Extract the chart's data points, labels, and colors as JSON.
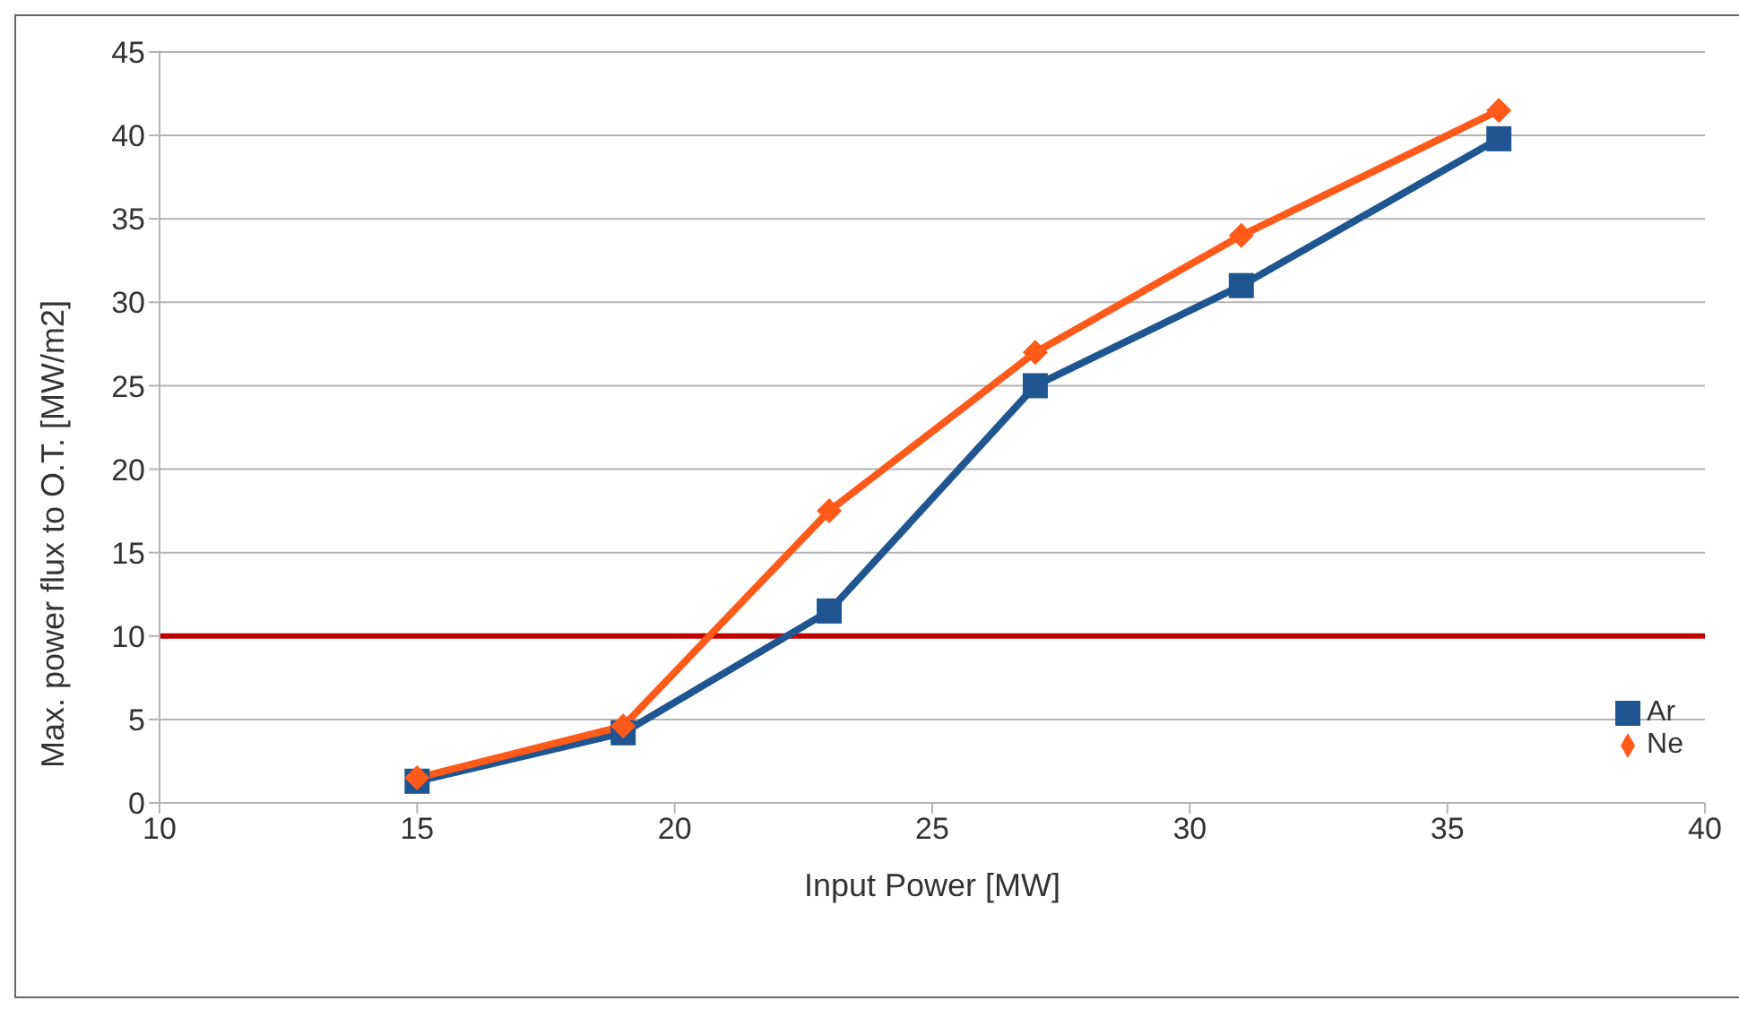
{
  "chart_data": {
    "type": "line",
    "xlabel": "Input Power [MW]",
    "ylabel": "Max. power flux to O.T. [MW/m2]",
    "x": [
      15,
      19,
      23,
      27,
      31,
      36
    ],
    "series": [
      {
        "name": "Ar",
        "color": "#1f5591",
        "marker": "square",
        "values": [
          1.3,
          4.2,
          11.5,
          25,
          31,
          39.8
        ]
      },
      {
        "name": "Ne",
        "color": "#ff5a1a",
        "marker": "diamond",
        "values": [
          1.5,
          4.6,
          17.5,
          27,
          34,
          41.5
        ]
      }
    ],
    "xlim": [
      10,
      40
    ],
    "xticks": [
      10,
      15,
      20,
      25,
      30,
      35,
      40
    ],
    "ylim": [
      0,
      45
    ],
    "yticks": [
      0,
      5,
      10,
      15,
      20,
      25,
      30,
      35,
      40,
      45
    ],
    "grid": "y",
    "legend": "right",
    "line_style": "solid",
    "ref_lines": [
      {
        "axis": "y",
        "value": 10,
        "color": "#c00000"
      }
    ]
  }
}
